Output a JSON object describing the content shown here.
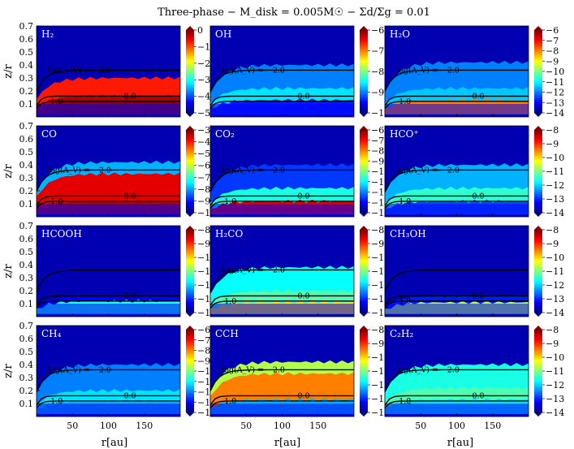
{
  "figure": {
    "title": "Three-phase − M_disk = 0.005M☉ − Σd/Σg = 0.01",
    "xlabel": "r[au]",
    "ylabel": "z/r"
  },
  "chart_data": {
    "type": "heatmap",
    "grid": {
      "rows": 4,
      "cols": 3
    },
    "xlim": [
      0,
      200
    ],
    "ylim": [
      0,
      0.7
    ],
    "xticks": [
      50,
      100,
      150
    ],
    "yticks": [
      0.1,
      0.2,
      0.3,
      0.4,
      0.5,
      0.6,
      0.7
    ],
    "colormap": "jet",
    "colormap_stops": [
      "#00007f",
      "#0000ff",
      "#007fff",
      "#00ffff",
      "#7fff7f",
      "#ffff00",
      "#ff7f00",
      "#ff0000",
      "#7f0000"
    ],
    "contours": [
      {
        "label": "log(A_V) = −2.0",
        "z_over_r": 0.36
      },
      {
        "label": "0.0",
        "z_over_r": 0.16
      },
      {
        "label": "1.0",
        "z_over_r": 0.12
      }
    ],
    "panels": [
      {
        "species": "H2",
        "title": "H₂",
        "range": [
          -5,
          0
        ],
        "ticks": [
          "0",
          "−1",
          "−2",
          "−3",
          "−4",
          "−5"
        ],
        "layers": [
          {
            "z": 0.3,
            "level": 0.85
          },
          {
            "z": 0.16,
            "level": 0.95
          },
          {
            "z": 0.12,
            "level": 0.98
          }
        ],
        "contour_labels": [
          "log(A_V) = −2.0",
          "0.0",
          "1.0"
        ]
      },
      {
        "species": "OH",
        "title": "OH",
        "range": [
          -10,
          -6
        ],
        "ticks": [
          "−6",
          "−7",
          "−8",
          "−9",
          "−10"
        ],
        "layers": [
          {
            "z": 0.4,
            "level": 0.25
          },
          {
            "z": 0.22,
            "level": 0.35
          },
          {
            "z": 0.13,
            "level": 0.15
          }
        ],
        "contour_labels": [
          "log(A_V) = −2.0",
          "0.0"
        ]
      },
      {
        "species": "H2O",
        "title": "H₂O",
        "range": [
          -14,
          -6
        ],
        "ticks": [
          "−6",
          "−7",
          "−8",
          "−9",
          "−10",
          "−11",
          "−12",
          "−13",
          "−14"
        ],
        "layers": [
          {
            "z": 0.42,
            "level": 0.25
          },
          {
            "z": 0.22,
            "level": 0.32
          },
          {
            "z": 0.13,
            "level": 0.75
          }
        ],
        "contour_labels": [
          "log(A_V) = −2.0",
          "0.0",
          "1.0"
        ]
      },
      {
        "species": "CO",
        "title": "CO",
        "range": [
          -10,
          -3
        ],
        "ticks": [
          "−3",
          "−4",
          "−5",
          "−6",
          "−7",
          "−8",
          "−9",
          "−10"
        ],
        "layers": [
          {
            "z": 0.42,
            "level": 0.3
          },
          {
            "z": 0.33,
            "level": 0.9
          },
          {
            "z": 0.12,
            "level": 0.95
          }
        ],
        "contour_labels": [
          "log(A_V) = −2.0",
          "0.0",
          "1.0"
        ]
      },
      {
        "species": "CO2",
        "title": "CO₂",
        "range": [
          -14,
          -6
        ],
        "ticks": [
          "−6",
          "−7",
          "−8",
          "−9",
          "−10",
          "−11",
          "−12",
          "−13",
          "−14"
        ],
        "layers": [
          {
            "z": 0.4,
            "level": 0.18
          },
          {
            "z": 0.22,
            "level": 0.4
          },
          {
            "z": 0.12,
            "level": 0.9
          }
        ],
        "contour_labels": [
          "log(A_V) = −2.0",
          "0.0",
          "1.0"
        ]
      },
      {
        "species": "HCO+",
        "title": "HCO⁺",
        "range": [
          -14,
          -8
        ],
        "ticks": [
          "−8",
          "−9",
          "−10",
          "−11",
          "−12",
          "−13",
          "−14"
        ],
        "layers": [
          {
            "z": 0.4,
            "level": 0.3
          },
          {
            "z": 0.22,
            "level": 0.42
          },
          {
            "z": 0.12,
            "level": 0.2
          }
        ],
        "contour_labels": [
          "log(A_V) = −2.0",
          "0.0",
          "1.0"
        ]
      },
      {
        "species": "HCOOH",
        "title": "HCOOH",
        "range": [
          -14,
          -8
        ],
        "ticks": [
          "−8",
          "−9",
          "−10",
          "−11",
          "−12",
          "−13",
          "−14"
        ],
        "layers": [
          {
            "z": 0.35,
            "level": 0.05
          },
          {
            "z": 0.16,
            "level": 0.12
          },
          {
            "z": 0.12,
            "level": 0.4
          }
        ],
        "contour_labels": [
          "0.0"
        ]
      },
      {
        "species": "H2CO",
        "title": "H₂CO",
        "range": [
          -14,
          -8
        ],
        "ticks": [
          "−8",
          "−9",
          "−10",
          "−11",
          "−12",
          "−13",
          "−14"
        ],
        "layers": [
          {
            "z": 0.38,
            "level": 0.38
          },
          {
            "z": 0.2,
            "level": 0.45
          },
          {
            "z": 0.11,
            "level": 0.65
          }
        ],
        "contour_labels": [
          "log(A_V) = −2.0",
          "0.0",
          "1.0"
        ]
      },
      {
        "species": "CH3OH",
        "title": "CH₃OH",
        "range": [
          -14,
          -8
        ],
        "ticks": [
          "−8",
          "−9",
          "−10",
          "−11",
          "−12",
          "−13",
          "−14"
        ],
        "layers": [
          {
            "z": 0.35,
            "level": 0.05
          },
          {
            "z": 0.16,
            "level": 0.15
          },
          {
            "z": 0.11,
            "level": 0.55
          }
        ],
        "contour_labels": [
          "0.0",
          "1.0"
        ]
      },
      {
        "species": "CH4",
        "title": "CH₄",
        "range": [
          -14,
          -6
        ],
        "ticks": [
          "−6",
          "−7",
          "−8",
          "−9",
          "−10",
          "−11",
          "−12",
          "−13",
          "−14"
        ],
        "layers": [
          {
            "z": 0.4,
            "level": 0.25
          },
          {
            "z": 0.2,
            "level": 0.35
          },
          {
            "z": 0.12,
            "level": 0.3
          }
        ],
        "contour_labels": [
          "log(A_V) = −2.0",
          "0.0",
          "1.0"
        ]
      },
      {
        "species": "CCH",
        "title": "CCH",
        "range": [
          -14,
          -8
        ],
        "ticks": [
          "−8",
          "−9",
          "−10",
          "−11",
          "−12",
          "−13",
          "−14"
        ],
        "layers": [
          {
            "z": 0.42,
            "level": 0.55
          },
          {
            "z": 0.33,
            "level": 0.75
          },
          {
            "z": 0.13,
            "level": 0.3
          }
        ],
        "contour_labels": [
          "log(A_V) = −2.0",
          "0.0",
          "1.0"
        ]
      },
      {
        "species": "C2H2",
        "title": "C₂H₂",
        "range": [
          -14,
          -8
        ],
        "ticks": [
          "−8",
          "−9",
          "−10",
          "−11",
          "−12",
          "−13",
          "−14"
        ],
        "layers": [
          {
            "z": 0.4,
            "level": 0.4
          },
          {
            "z": 0.22,
            "level": 0.45
          },
          {
            "z": 0.13,
            "level": 0.35
          }
        ],
        "contour_labels": [
          "log(A_V) = −2.0",
          "0.0",
          "1.0"
        ]
      }
    ]
  }
}
